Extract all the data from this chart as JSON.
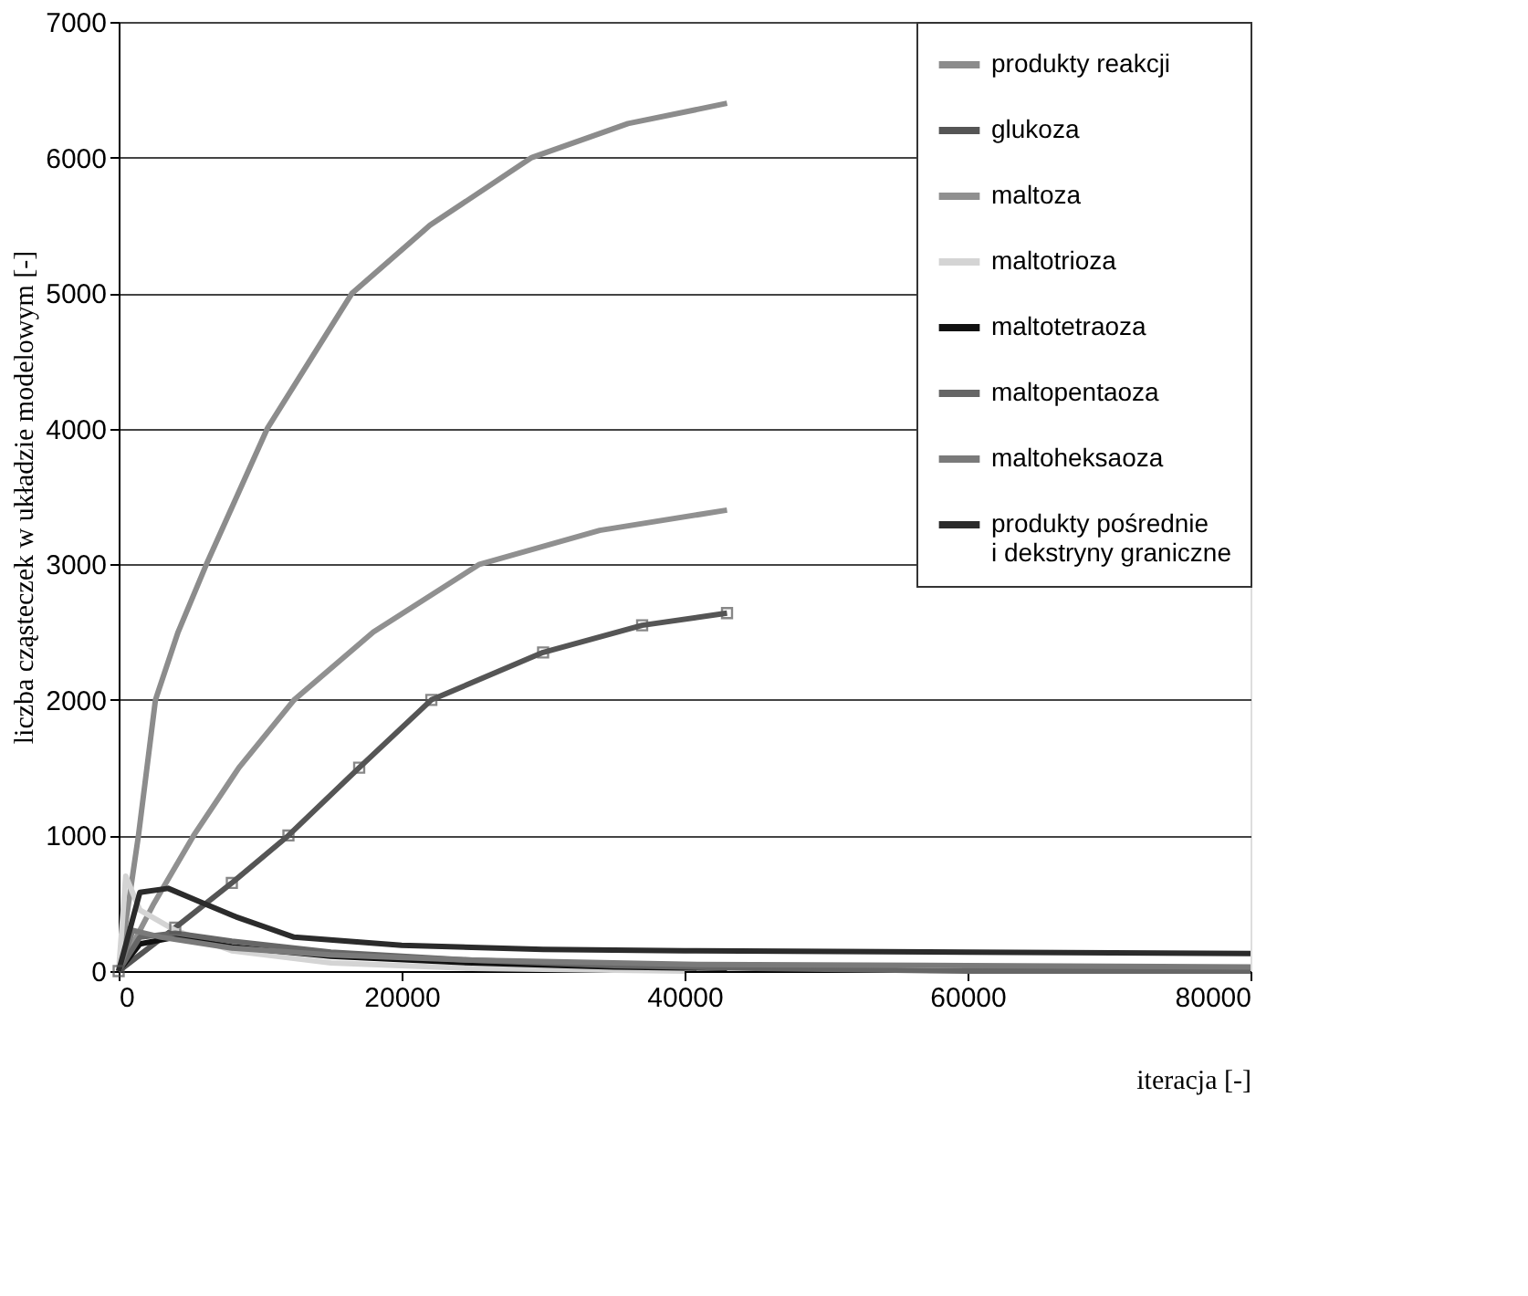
{
  "chart_data": {
    "type": "line",
    "xlabel": "iteracja [-]",
    "ylabel": "liczba cząsteczek w układzie modelowym [-]",
    "xlim": [
      0,
      80000
    ],
    "xticks": [
      0,
      20000,
      40000,
      60000,
      80000
    ],
    "ylim": [
      0,
      7000
    ],
    "yticks": [
      0,
      1000,
      2000,
      3000,
      4000,
      5000,
      6000,
      7000
    ],
    "grid": "y",
    "legend": "top right",
    "marker": "none",
    "line_style": "solid",
    "series": [
      {
        "name": "produkty reakcji",
        "color": "#8c8c8c",
        "x": [
          0,
          700,
          1400,
          2600,
          4200,
          6200,
          10500,
          16500,
          22000,
          29200,
          36000,
          43000
        ],
        "values": [
          0,
          500,
          1000,
          2000,
          2500,
          3000,
          4000,
          5000,
          5500,
          6000,
          6250,
          6400
        ]
      },
      {
        "name": "glukoza",
        "color": "#555555",
        "marker": "square",
        "x": [
          0,
          4000,
          8000,
          12000,
          17000,
          22100,
          30000,
          37000,
          43000
        ],
        "values": [
          0,
          320,
          650,
          1000,
          1500,
          2000,
          2350,
          2550,
          2640
        ]
      },
      {
        "name": "maltoza",
        "color": "#909090",
        "x": [
          0,
          2500,
          5300,
          8500,
          12400,
          18000,
          25500,
          34000,
          43000
        ],
        "values": [
          0,
          500,
          1000,
          1500,
          2000,
          2500,
          3000,
          3250,
          3400
        ]
      },
      {
        "name": "maltotrioza",
        "color": "#d4d4d4",
        "x": [
          0,
          500,
          1500,
          4000,
          8000,
          15000,
          25000,
          40000
        ],
        "values": [
          0,
          700,
          450,
          300,
          150,
          60,
          20,
          0
        ]
      },
      {
        "name": "maltotetraoza",
        "color": "#111111",
        "x": [
          0,
          1500,
          4000,
          8000,
          15000,
          25000,
          35000,
          43000
        ],
        "values": [
          0,
          200,
          250,
          180,
          110,
          60,
          30,
          20
        ]
      },
      {
        "name": "maltopentaoza",
        "color": "#666666",
        "x": [
          0,
          1500,
          4000,
          8000,
          15000,
          25000,
          35000,
          45000,
          60000,
          80000
        ],
        "values": [
          0,
          250,
          280,
          220,
          140,
          80,
          40,
          20,
          0,
          0
        ]
      },
      {
        "name": "maltoheksaoza",
        "color": "#7a7a7a",
        "x": [
          0,
          1000,
          3000,
          8000,
          15000,
          25000,
          40000,
          60000,
          80000
        ],
        "values": [
          0,
          300,
          250,
          170,
          120,
          80,
          50,
          40,
          30
        ]
      },
      {
        "name": "produkty pośrednie\ni dekstryny graniczne",
        "color": "#2b2b2b",
        "x": [
          0,
          1500,
          3500,
          6000,
          8300,
          12400,
          20000,
          30000,
          40000,
          60000,
          80000
        ],
        "values": [
          0,
          580,
          610,
          500,
          400,
          250,
          190,
          160,
          150,
          140,
          130
        ]
      }
    ]
  }
}
